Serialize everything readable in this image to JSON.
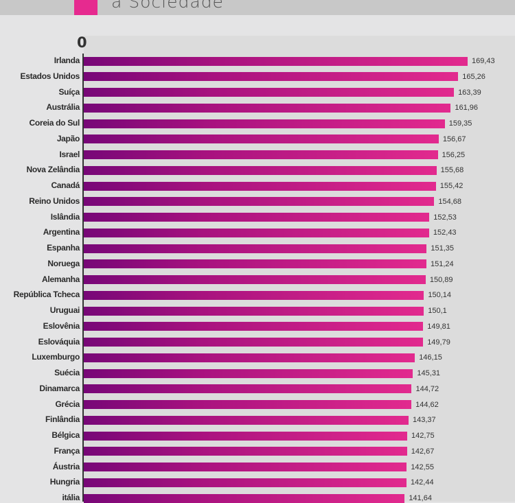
{
  "header": {
    "title": "a Sociedade",
    "accent_color": "#e62a8f"
  },
  "chart_data": {
    "type": "bar",
    "orientation": "horizontal",
    "axis_tick_labels": [
      "0"
    ],
    "xlim": [
      0,
      180
    ],
    "bar_gradient": [
      "#770777",
      "#e22a8e"
    ],
    "categories": [
      "Irlanda",
      "Estados Unidos",
      "Suíça",
      "Austrália",
      "Coreia do Sul",
      "Japão",
      "Israel",
      "Nova Zelândia",
      "Canadá",
      "Reino Unidos",
      "Islândia",
      "Argentina",
      "Espanha",
      "Noruega",
      "Alemanha",
      "República Tcheca",
      "Uruguai",
      "Eslovênia",
      "Eslováquia",
      "Luxemburgo",
      "Suécia",
      "Dinamarca",
      "Grécia",
      "Finlândia",
      "Bélgica",
      "França",
      "Áustria",
      "Hungria",
      "itália"
    ],
    "values": [
      169.43,
      165.26,
      163.39,
      161.96,
      159.35,
      156.67,
      156.25,
      155.68,
      155.42,
      154.68,
      152.53,
      152.43,
      151.35,
      151.24,
      150.89,
      150.14,
      150.1,
      149.81,
      149.79,
      146.15,
      145.31,
      144.72,
      144.62,
      143.37,
      142.75,
      142.67,
      142.55,
      142.44,
      141.64
    ],
    "value_labels": [
      "169,43",
      "165,26",
      "163,39",
      "161,96",
      "159,35",
      "156,67",
      "156,25",
      "155,68",
      "155,42",
      "154,68",
      "152,53",
      "152,43",
      "151,35",
      "151,24",
      "150,89",
      "150,14",
      "150,1",
      "149,81",
      "149,79",
      "146,15",
      "145,31",
      "144,72",
      "144,62",
      "143,37",
      "142,75",
      "142,67",
      "142,55",
      "142,44",
      "141,64"
    ]
  }
}
